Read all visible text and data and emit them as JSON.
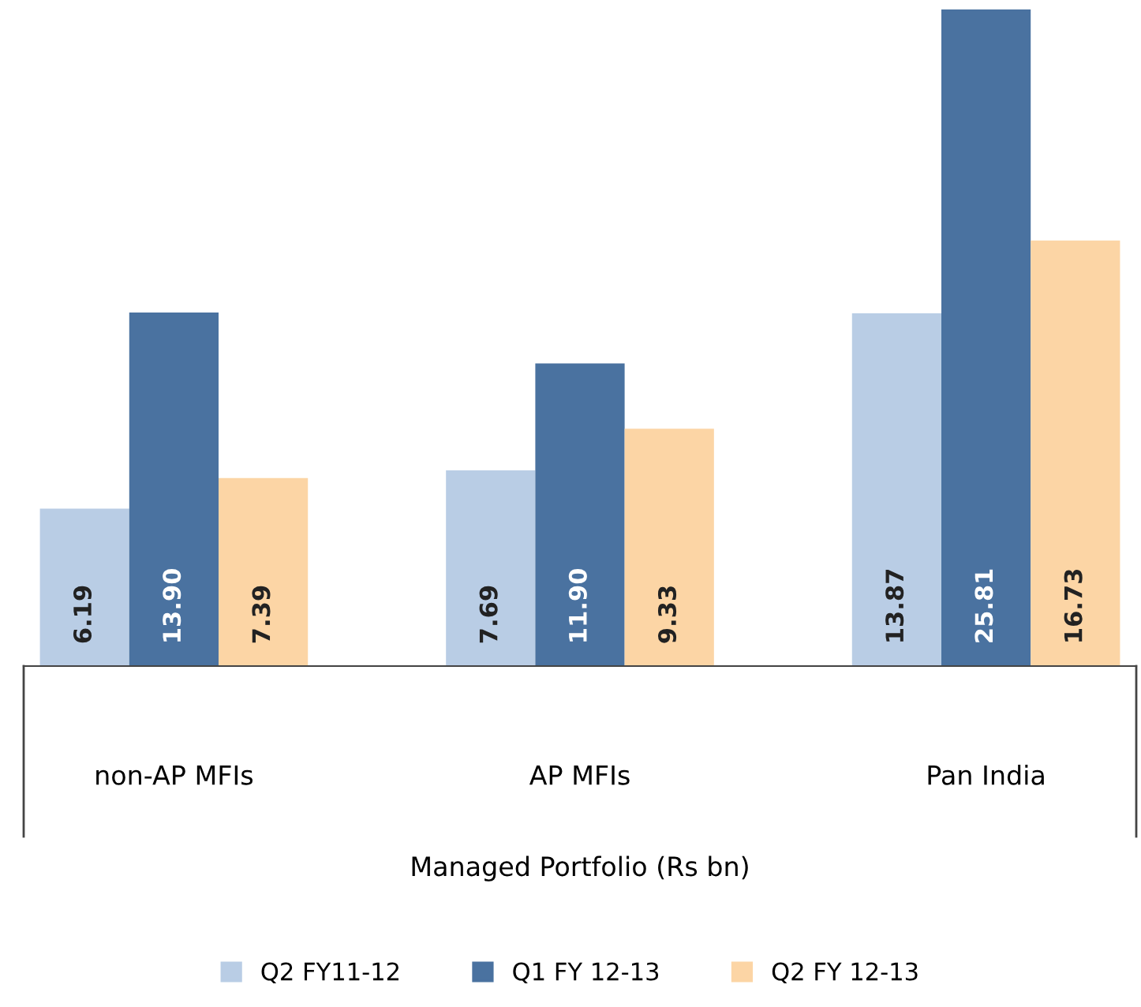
{
  "chart_data": {
    "type": "bar",
    "xlabel": "Managed Portfolio (Rs bn)",
    "categories": [
      "non-AP MFIs",
      "AP MFIs",
      "Pan India"
    ],
    "series": [
      {
        "name": "Q2 FY11-12",
        "color": "#b9cde5",
        "values": [
          6.19,
          7.69,
          13.87
        ],
        "value_labels": [
          "6.19",
          "7.69",
          "13.87"
        ]
      },
      {
        "name": "Q1 FY 12-13",
        "color": "#4a72a0",
        "values": [
          13.9,
          11.9,
          25.81
        ],
        "value_labels": [
          "13.90",
          "11.90",
          "25.81"
        ]
      },
      {
        "name": "Q2 FY 12-13",
        "color": "#fcd5a5",
        "values": [
          7.39,
          9.33,
          16.73
        ],
        "value_labels": [
          "7.39",
          "9.33",
          "16.73"
        ]
      }
    ],
    "legend": "bottom",
    "grid": false
  }
}
